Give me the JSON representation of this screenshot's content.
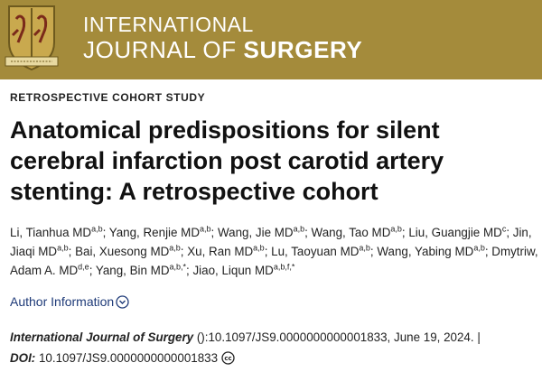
{
  "header": {
    "journal_line1": "INTERNATIONAL",
    "journal_line2_a": "JOURNAL OF",
    "journal_line2_b": "SURGERY",
    "banner_color": "#a48b3b"
  },
  "article": {
    "type": "RETROSPECTIVE COHORT STUDY",
    "title": "Anatomical predispositions for silent cerebral infarction post carotid artery stenting: A retrospective cohort",
    "authors": [
      {
        "name": "Li, Tianhua MD",
        "sup": "a,b"
      },
      {
        "name": "Yang, Renjie MD",
        "sup": "a,b"
      },
      {
        "name": "Wang, Jie MD",
        "sup": "a,b"
      },
      {
        "name": "Wang, Tao MD",
        "sup": "a,b"
      },
      {
        "name": "Liu, Guangjie MD",
        "sup": "c"
      },
      {
        "name": "Jin, Jiaqi MD",
        "sup": "a,b"
      },
      {
        "name": "Bai, Xuesong MD",
        "sup": "a,b"
      },
      {
        "name": "Xu, Ran MD",
        "sup": "a,b"
      },
      {
        "name": "Lu, Taoyuan MD",
        "sup": "a,b"
      },
      {
        "name": "Wang, Yabing MD",
        "sup": "a,b"
      },
      {
        "name": "Dmytriw, Adam A. MD",
        "sup": "d,e"
      },
      {
        "name": "Yang, Bin MD",
        "sup": "a,b,*"
      },
      {
        "name": "Jiao, Liqun MD",
        "sup": "a,b,f,*"
      }
    ],
    "author_info_label": "Author Information",
    "citation_journal": "International Journal of Surgery",
    "citation_rest": " ():10.1097/JS9.0000000000001833, June 19, 2024. |",
    "doi_label": "DOI:",
    "doi_value": " 10.1097/JS9.0000000000001833",
    "link_color": "#1e3a78"
  }
}
